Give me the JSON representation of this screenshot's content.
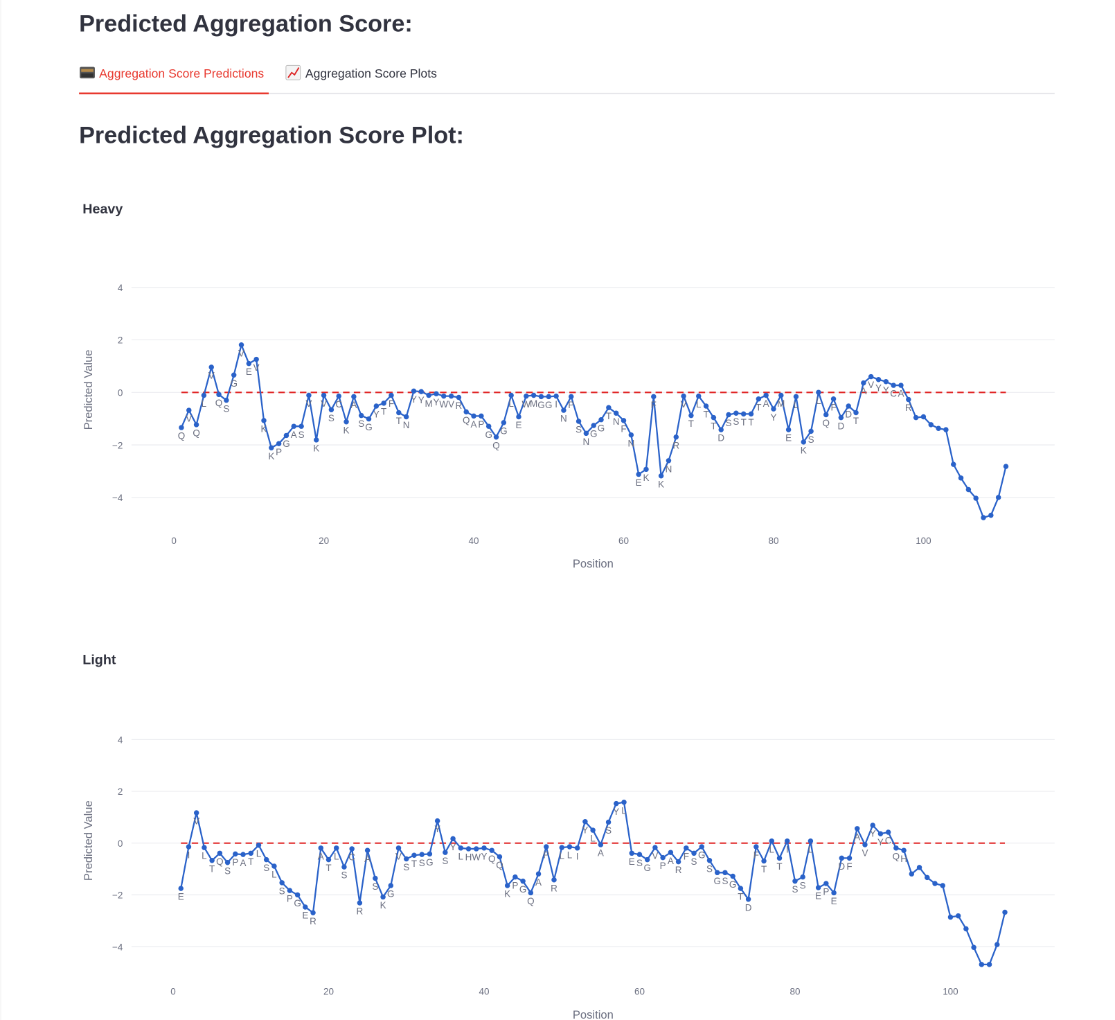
{
  "header": {
    "title": "Predicted Aggregation Score:"
  },
  "tabs": [
    {
      "label": "Aggregation Score Predictions",
      "active": true
    },
    {
      "label": "Aggregation Score Plots",
      "active": false
    }
  ],
  "section": {
    "title": "Predicted Aggregation Score Plot:"
  },
  "chart_data": [
    {
      "type": "line",
      "title": "Heavy",
      "xlabel": "Position",
      "ylabel": "Predicted Value",
      "color": "#2a62c9",
      "grid": true,
      "xlim": [
        -5.66,
        117.5
      ],
      "ylim": [
        -5.3,
        5.5
      ],
      "xticks": [
        0,
        20,
        40,
        60,
        80,
        100
      ],
      "yticks": [
        {
          "value": -4,
          "label": "−4"
        },
        {
          "value": -2,
          "label": "−2"
        },
        0,
        2,
        4
      ],
      "hline": {
        "y": 0,
        "color": "#e02424"
      },
      "x": [
        1,
        2,
        3,
        4,
        5,
        6,
        7,
        8,
        9,
        10,
        11,
        12,
        13,
        14,
        15,
        16,
        17,
        18,
        19,
        20,
        21,
        22,
        23,
        24,
        25,
        26,
        27,
        28,
        29,
        30,
        31,
        32,
        33,
        34,
        35,
        36,
        37,
        38,
        39,
        40,
        41,
        42,
        43,
        44,
        45,
        46,
        47,
        48,
        49,
        50,
        51,
        52,
        53,
        54,
        55,
        56,
        57,
        58,
        59,
        60,
        61,
        62,
        63,
        64,
        65,
        66,
        67,
        68,
        69,
        70,
        71,
        72,
        73,
        74,
        75,
        76,
        77,
        78,
        79,
        80,
        81,
        82,
        83,
        84,
        85,
        86,
        87,
        88,
        89,
        90,
        91,
        92,
        93,
        94,
        95,
        96,
        97,
        98,
        99,
        100,
        101,
        102,
        103,
        104,
        105,
        106,
        107,
        108,
        109,
        110,
        111
      ],
      "values": [
        -1.34,
        -0.68,
        -1.23,
        -0.11,
        0.96,
        -0.08,
        -0.3,
        0.66,
        1.81,
        1.1,
        1.26,
        -1.07,
        -2.11,
        -1.95,
        -1.64,
        -1.29,
        -1.29,
        -0.11,
        -1.81,
        -0.11,
        -0.66,
        -0.14,
        -1.12,
        -0.16,
        -0.88,
        -1.01,
        -0.52,
        -0.41,
        -0.11,
        -0.77,
        -0.93,
        0.05,
        0.03,
        -0.11,
        -0.05,
        -0.14,
        -0.14,
        -0.19,
        -0.74,
        -0.9,
        -0.9,
        -1.29,
        -1.7,
        -1.15,
        -0.11,
        -0.93,
        -0.14,
        -0.11,
        -0.16,
        -0.16,
        -0.14,
        -0.68,
        -0.16,
        -1.1,
        -1.56,
        -1.26,
        -1.04,
        -0.58,
        -0.79,
        -1.07,
        -1.62,
        -3.12,
        -2.93,
        -0.16,
        -3.18,
        -2.6,
        -1.7,
        -0.14,
        -0.88,
        -0.14,
        -0.52,
        -0.96,
        -1.42,
        -0.85,
        -0.79,
        -0.82,
        -0.82,
        -0.25,
        -0.11,
        -0.63,
        -0.11,
        -1.42,
        -0.16,
        -1.89,
        -1.48,
        0.0,
        -0.85,
        -0.25,
        -0.96,
        -0.52,
        -0.77,
        0.36,
        0.6,
        0.49,
        0.41,
        0.27,
        0.27,
        -0.27,
        -0.96,
        -0.93,
        -1.23,
        -1.37,
        -1.42,
        -2.74,
        -3.26,
        -3.7,
        -4.03,
        -4.77,
        -4.68,
        -4.0,
        -2.82
      ],
      "text": [
        "Q",
        "V",
        "Q",
        "L",
        "V",
        "Q",
        "S",
        "G",
        "V",
        "E",
        "V",
        "K",
        "K",
        "P",
        "G",
        "A",
        "S",
        "V",
        "K",
        "V",
        "S",
        "C",
        "K",
        "A",
        "S",
        "G",
        "Y",
        "T",
        "F",
        "T",
        "N",
        "Y",
        "Y",
        "M",
        "Y",
        "W",
        "V",
        "R",
        "Q",
        "A",
        "P",
        "G",
        "Q",
        "G",
        "L",
        "E",
        "W",
        "M",
        "G",
        "G",
        "I",
        "N",
        "P",
        "S",
        "N",
        "G",
        "G",
        "T",
        "N",
        "F",
        "N",
        "E",
        "K",
        "F",
        "K",
        "N",
        "R",
        "V",
        "T",
        "L",
        "T",
        "T",
        "D",
        "S",
        "S",
        "T",
        "T",
        "T",
        "A",
        "Y",
        "M",
        "E",
        "L",
        "K",
        "S",
        "L",
        "Q",
        "F",
        "D",
        "D",
        "T",
        "A",
        "V",
        "Y",
        "Y",
        "C",
        "A",
        "R",
        null,
        null,
        null,
        null,
        null,
        null,
        null,
        null,
        null,
        null,
        null,
        null,
        null
      ]
    },
    {
      "type": "line",
      "title": "Light",
      "xlabel": "Position",
      "ylabel": "Predicted Value",
      "color": "#2a62c9",
      "grid": true,
      "xlim": [
        -5.36,
        113.4
      ],
      "ylim": [
        -5.39,
        5.58
      ],
      "xticks": [
        0,
        20,
        40,
        60,
        80,
        100
      ],
      "yticks": [
        {
          "value": -4,
          "label": "−4"
        },
        {
          "value": -2,
          "label": "−2"
        },
        0,
        2,
        4
      ],
      "hline": {
        "y": 0,
        "color": "#e02424"
      },
      "x": [
        1,
        2,
        3,
        4,
        5,
        6,
        7,
        8,
        9,
        10,
        11,
        12,
        13,
        14,
        15,
        16,
        17,
        18,
        19,
        20,
        21,
        22,
        23,
        24,
        25,
        26,
        27,
        28,
        29,
        30,
        31,
        32,
        33,
        34,
        35,
        36,
        37,
        38,
        39,
        40,
        41,
        42,
        43,
        44,
        45,
        46,
        47,
        48,
        49,
        50,
        51,
        52,
        53,
        54,
        55,
        56,
        57,
        58,
        59,
        60,
        61,
        62,
        63,
        64,
        65,
        66,
        67,
        68,
        69,
        70,
        71,
        72,
        73,
        74,
        75,
        76,
        77,
        78,
        79,
        80,
        81,
        82,
        83,
        84,
        85,
        86,
        87,
        88,
        89,
        90,
        91,
        92,
        93,
        94,
        95,
        96,
        97,
        98,
        99,
        100,
        101,
        102,
        103,
        104,
        105,
        106,
        107
      ],
      "values": [
        -1.75,
        -0.14,
        1.17,
        -0.17,
        -0.67,
        -0.39,
        -0.75,
        -0.42,
        -0.44,
        -0.39,
        -0.08,
        -0.64,
        -0.89,
        -1.53,
        -1.83,
        -2.0,
        -2.47,
        -2.69,
        -0.19,
        -0.64,
        -0.19,
        -0.92,
        -0.22,
        -2.31,
        -0.28,
        -1.36,
        -2.08,
        -1.64,
        -0.19,
        -0.61,
        -0.47,
        -0.44,
        -0.42,
        0.86,
        -0.36,
        0.17,
        -0.19,
        -0.22,
        -0.22,
        -0.19,
        -0.28,
        -0.53,
        -1.64,
        -1.31,
        -1.47,
        -1.92,
        -1.19,
        -0.14,
        -1.42,
        -0.17,
        -0.14,
        -0.19,
        0.83,
        0.5,
        -0.06,
        0.81,
        1.53,
        1.58,
        -0.39,
        -0.44,
        -0.64,
        -0.17,
        -0.56,
        -0.36,
        -0.72,
        -0.19,
        -0.39,
        -0.14,
        -0.67,
        -1.14,
        -1.14,
        -1.28,
        -1.75,
        -2.17,
        -0.14,
        -0.69,
        0.08,
        -0.58,
        0.08,
        -1.47,
        -1.31,
        0.08,
        -1.72,
        -1.56,
        -1.92,
        -0.58,
        -0.58,
        0.56,
        -0.06,
        0.69,
        0.36,
        0.42,
        -0.19,
        -0.28,
        -1.19,
        -0.94,
        -1.33,
        -1.56,
        -1.64,
        -2.86,
        -2.81,
        -3.31,
        -4.03,
        -4.69,
        -4.69,
        -3.92,
        -2.67
      ],
      "text": [
        "E",
        "I",
        "V",
        "L",
        "T",
        "Q",
        "S",
        "P",
        "A",
        "T",
        "L",
        "S",
        "L",
        "S",
        "P",
        "G",
        "E",
        "R",
        "A",
        "T",
        "L",
        "S",
        "C",
        "R",
        "A",
        "S",
        "K",
        "G",
        "V",
        "S",
        "T",
        "S",
        "G",
        "Y",
        "S",
        "Y",
        "L",
        "H",
        "W",
        "Y",
        "Q",
        "Q",
        "K",
        "P",
        "G",
        "Q",
        "A",
        "P",
        "R",
        "L",
        "L",
        "I",
        "Y",
        "L",
        "A",
        "S",
        "Y",
        "L",
        "E",
        "S",
        "G",
        "V",
        "P",
        "A",
        "R",
        "F",
        "S",
        "G",
        "S",
        "G",
        "S",
        "G",
        "T",
        "D",
        "F",
        "T",
        "L",
        "T",
        "I",
        "S",
        "S",
        "L",
        "E",
        "P",
        "E",
        "D",
        "F",
        "A",
        "V",
        "Y",
        "Y",
        "C",
        "Q",
        "H",
        null,
        null,
        null,
        null,
        null,
        null,
        null,
        null,
        null,
        null,
        null,
        null,
        null
      ]
    }
  ]
}
